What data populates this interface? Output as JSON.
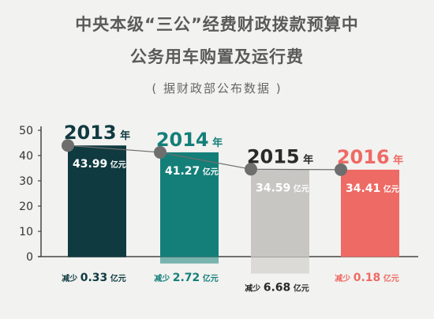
{
  "title": {
    "line1": "中央本级“三公”经费财政拨款预算中",
    "line2": "公务用车购置及运行费",
    "source": "( 据财政部公布数据 )"
  },
  "chart_data": {
    "type": "bar",
    "title": "中央本级“三公”经费财政拨款预算中公务用车购置及运行费",
    "subtitle": "( 据财政部公布数据 )",
    "unit": "亿元",
    "year_suffix": "年",
    "categories": [
      "2013",
      "2014",
      "2015",
      "2016"
    ],
    "values": [
      43.99,
      41.27,
      34.59,
      34.41
    ],
    "value_labels": [
      "43.99",
      "41.27",
      "34.59",
      "34.41"
    ],
    "decreases": [
      0.33,
      2.72,
      6.68,
      0.18
    ],
    "decrease_prefix": "减少",
    "decrease_labels": [
      "0.33",
      "2.72",
      "6.68",
      "0.18"
    ],
    "yticks": [
      "0",
      "10",
      "20",
      "30",
      "40",
      "50"
    ],
    "ylim": [
      0,
      50
    ],
    "colors": [
      "#0f3a40",
      "#147f79",
      "#c8c6c2",
      "#ee6a64"
    ],
    "year_colors": [
      "#0f3a40",
      "#147f79",
      "#2a2a2a",
      "#ee6a64"
    ],
    "decrease_colors": [
      "#0f3a40",
      "#147f79",
      "#2a2a2a",
      "#ee6a64"
    ],
    "marker_color": "#6e6e6e"
  }
}
